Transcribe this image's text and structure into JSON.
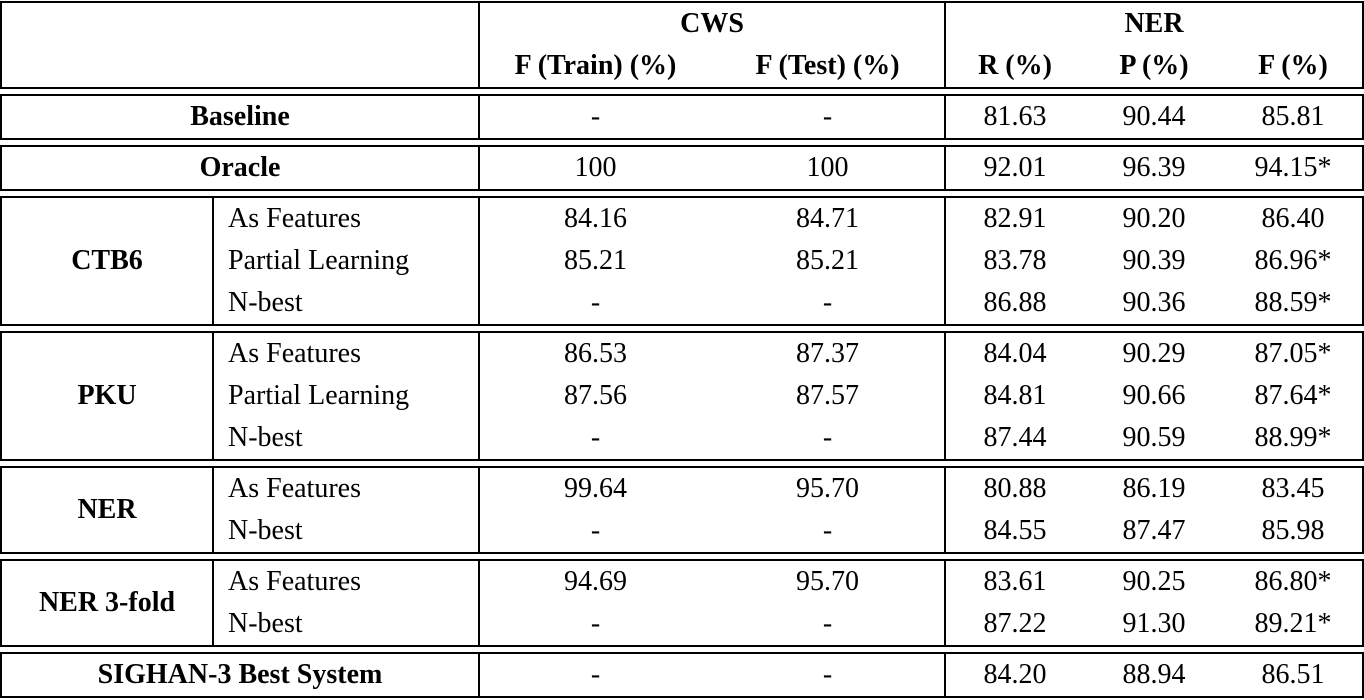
{
  "table": {
    "header": {
      "cws_label": "CWS",
      "ner_label": "NER",
      "cws_cols": [
        "F (Train) (%)",
        "F (Test) (%)"
      ],
      "ner_cols": [
        "R (%)",
        "P (%)",
        "F (%)"
      ]
    },
    "blocks": [
      {
        "label": "Baseline",
        "rows": [
          {
            "values": [
              "-",
              "-",
              "81.63",
              "90.44",
              "85.81"
            ]
          }
        ]
      },
      {
        "label": "Oracle",
        "rows": [
          {
            "values": [
              "100",
              "100",
              "92.01",
              "96.39",
              "94.15*"
            ]
          }
        ]
      },
      {
        "label": "CTB6",
        "rows": [
          {
            "method": "As Features",
            "values": [
              "84.16",
              "84.71",
              "82.91",
              "90.20",
              "86.40"
            ]
          },
          {
            "method": "Partial Learning",
            "values": [
              "85.21",
              "85.21",
              "83.78",
              "90.39",
              "86.96*"
            ]
          },
          {
            "method": "N-best",
            "values": [
              "-",
              "-",
              "86.88",
              "90.36",
              "88.59*"
            ]
          }
        ]
      },
      {
        "label": "PKU",
        "rows": [
          {
            "method": "As Features",
            "values": [
              "86.53",
              "87.37",
              "84.04",
              "90.29",
              "87.05*"
            ]
          },
          {
            "method": "Partial Learning",
            "values": [
              "87.56",
              "87.57",
              "84.81",
              "90.66",
              "87.64*"
            ]
          },
          {
            "method": "N-best",
            "values": [
              "-",
              "-",
              "87.44",
              "90.59",
              "88.99*"
            ]
          }
        ]
      },
      {
        "label": "NER",
        "rows": [
          {
            "method": "As Features",
            "values": [
              "99.64",
              "95.70",
              "80.88",
              "86.19",
              "83.45"
            ]
          },
          {
            "method": "N-best",
            "values": [
              "-",
              "-",
              "84.55",
              "87.47",
              "85.98"
            ]
          }
        ]
      },
      {
        "label": "NER 3-fold",
        "rows": [
          {
            "method": "As Features",
            "values": [
              "94.69",
              "95.70",
              "83.61",
              "90.25",
              "86.80*"
            ]
          },
          {
            "method": "N-best",
            "values": [
              "-",
              "-",
              "87.22",
              "91.30",
              "89.21*"
            ]
          }
        ]
      },
      {
        "label": "SIGHAN-3 Best System",
        "rows": [
          {
            "values": [
              "-",
              "-",
              "84.20",
              "88.94",
              "86.51"
            ]
          }
        ]
      }
    ]
  }
}
